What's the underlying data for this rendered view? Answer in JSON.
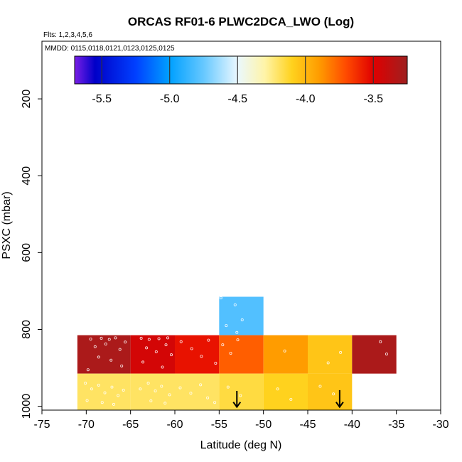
{
  "chart_data": {
    "type": "heatmap",
    "title": "ORCAS RF01-6 PLWC2DCA_LWO (Log)",
    "flights_label": "Flts: 1,2,3,4,5,6",
    "dates_label": "MMDD: 0115,0118,0121,0123,0125,0125",
    "xlabel": "Latitude (deg N)",
    "ylabel": "PSXC (mbar)",
    "xlim": [
      -75,
      -30
    ],
    "ylim": [
      1010,
      50
    ],
    "y_reversed": true,
    "x_ticks": [
      -75,
      -70,
      -65,
      -60,
      -55,
      -50,
      -45,
      -40,
      -35,
      -30
    ],
    "y_ticks": [
      200,
      400,
      600,
      800,
      1000
    ],
    "colorbar": {
      "range": [
        -5.7,
        -3.25
      ],
      "ticks": [
        -5.5,
        -5.0,
        -4.5,
        -4.0,
        -3.5
      ],
      "tick_labels": [
        "-5.5",
        "-5.0",
        "-4.5",
        "-4.0",
        "-3.5"
      ],
      "stops": [
        {
          "v": -5.7,
          "color": "#7a1fe6"
        },
        {
          "v": -5.55,
          "color": "#0000c8"
        },
        {
          "v": -5.25,
          "color": "#0040ff"
        },
        {
          "v": -5.0,
          "color": "#00a0ff"
        },
        {
          "v": -4.75,
          "color": "#66c8ff"
        },
        {
          "v": -4.5,
          "color": "#eaf8ff"
        },
        {
          "v": -4.3,
          "color": "#fff4a8"
        },
        {
          "v": -4.1,
          "color": "#ffd21e"
        },
        {
          "v": -3.9,
          "color": "#ff9c00"
        },
        {
          "v": -3.7,
          "color": "#ff4a00"
        },
        {
          "v": -3.5,
          "color": "#e00000"
        },
        {
          "v": -3.25,
          "color": "#9e2020"
        }
      ]
    },
    "cells": [
      {
        "lat0": -55,
        "lat1": -50,
        "p0": 715,
        "p1": 815,
        "value": -4.8
      },
      {
        "lat0": -71,
        "lat1": -65,
        "p0": 815,
        "p1": 915,
        "value": -3.3
      },
      {
        "lat0": -65,
        "lat1": -60,
        "p0": 815,
        "p1": 915,
        "value": -3.45
      },
      {
        "lat0": -60,
        "lat1": -55,
        "p0": 815,
        "p1": 915,
        "value": -3.55
      },
      {
        "lat0": -55,
        "lat1": -50,
        "p0": 815,
        "p1": 915,
        "value": -3.75
      },
      {
        "lat0": -50,
        "lat1": -45,
        "p0": 815,
        "p1": 915,
        "value": -3.9
      },
      {
        "lat0": -45,
        "lat1": -40,
        "p0": 815,
        "p1": 915,
        "value": -4.05
      },
      {
        "lat0": -40,
        "lat1": -35,
        "p0": 815,
        "p1": 915,
        "value": -3.3
      },
      {
        "lat0": -71,
        "lat1": -65,
        "p0": 915,
        "p1": 1010,
        "value": -4.2
      },
      {
        "lat0": -65,
        "lat1": -60,
        "p0": 915,
        "p1": 1010,
        "value": -4.2
      },
      {
        "lat0": -60,
        "lat1": -55,
        "p0": 915,
        "p1": 1010,
        "value": -4.2
      },
      {
        "lat0": -55,
        "lat1": -50,
        "p0": 915,
        "p1": 1010,
        "value": -4.15
      },
      {
        "lat0": -50,
        "lat1": -45,
        "p0": 915,
        "p1": 1010,
        "value": -4.1
      },
      {
        "lat0": -45,
        "lat1": -40,
        "p0": 915,
        "p1": 1010,
        "value": -4.05
      }
    ],
    "points": [
      {
        "lat": -69.5,
        "p": 825
      },
      {
        "lat": -68.3,
        "p": 823
      },
      {
        "lat": -67.4,
        "p": 826
      },
      {
        "lat": -66.7,
        "p": 822
      },
      {
        "lat": -69.0,
        "p": 845
      },
      {
        "lat": -67.8,
        "p": 838
      },
      {
        "lat": -66.2,
        "p": 852
      },
      {
        "lat": -65.6,
        "p": 833
      },
      {
        "lat": -68.6,
        "p": 872
      },
      {
        "lat": -67.2,
        "p": 880
      },
      {
        "lat": -66.0,
        "p": 895
      },
      {
        "lat": -69.8,
        "p": 905
      },
      {
        "lat": -63.8,
        "p": 823
      },
      {
        "lat": -62.9,
        "p": 826
      },
      {
        "lat": -61.8,
        "p": 824
      },
      {
        "lat": -60.8,
        "p": 822
      },
      {
        "lat": -63.2,
        "p": 848
      },
      {
        "lat": -62.1,
        "p": 858
      },
      {
        "lat": -61.0,
        "p": 840
      },
      {
        "lat": -60.4,
        "p": 866
      },
      {
        "lat": -63.6,
        "p": 885
      },
      {
        "lat": -61.4,
        "p": 898
      },
      {
        "lat": -59.3,
        "p": 832
      },
      {
        "lat": -58.1,
        "p": 850
      },
      {
        "lat": -57.0,
        "p": 870
      },
      {
        "lat": -56.2,
        "p": 828
      },
      {
        "lat": -55.4,
        "p": 888
      },
      {
        "lat": -54.6,
        "p": 840
      },
      {
        "lat": -53.7,
        "p": 862
      },
      {
        "lat": -52.9,
        "p": 827
      },
      {
        "lat": -53.2,
        "p": 736
      },
      {
        "lat": -54.8,
        "p": 718
      },
      {
        "lat": -52.4,
        "p": 775
      },
      {
        "lat": -54.2,
        "p": 790
      },
      {
        "lat": -53.0,
        "p": 808
      },
      {
        "lat": -47.6,
        "p": 856
      },
      {
        "lat": -42.7,
        "p": 887
      },
      {
        "lat": -41.3,
        "p": 860
      },
      {
        "lat": -36.8,
        "p": 832
      },
      {
        "lat": -36.1,
        "p": 864
      },
      {
        "lat": -70.1,
        "p": 940
      },
      {
        "lat": -69.4,
        "p": 955
      },
      {
        "lat": -68.6,
        "p": 945
      },
      {
        "lat": -67.9,
        "p": 965
      },
      {
        "lat": -67.1,
        "p": 950
      },
      {
        "lat": -66.4,
        "p": 972
      },
      {
        "lat": -65.8,
        "p": 958
      },
      {
        "lat": -69.9,
        "p": 985
      },
      {
        "lat": -68.2,
        "p": 990
      },
      {
        "lat": -66.9,
        "p": 995
      },
      {
        "lat": -63.9,
        "p": 955
      },
      {
        "lat": -63.0,
        "p": 940
      },
      {
        "lat": -62.2,
        "p": 960
      },
      {
        "lat": -61.5,
        "p": 948
      },
      {
        "lat": -60.6,
        "p": 970
      },
      {
        "lat": -62.7,
        "p": 986
      },
      {
        "lat": -61.1,
        "p": 992
      },
      {
        "lat": -59.4,
        "p": 952
      },
      {
        "lat": -58.2,
        "p": 966
      },
      {
        "lat": -57.1,
        "p": 944
      },
      {
        "lat": -56.3,
        "p": 978
      },
      {
        "lat": -55.5,
        "p": 990
      },
      {
        "lat": -54.0,
        "p": 950
      },
      {
        "lat": -52.6,
        "p": 972
      },
      {
        "lat": -48.4,
        "p": 955
      },
      {
        "lat": -46.9,
        "p": 982
      },
      {
        "lat": -43.6,
        "p": 948
      },
      {
        "lat": -42.1,
        "p": 968
      }
    ],
    "arrows": [
      {
        "lat": -53.0,
        "p_top": 960,
        "p_bottom": 1002
      },
      {
        "lat": -41.4,
        "p_top": 958,
        "p_bottom": 1002
      }
    ]
  }
}
